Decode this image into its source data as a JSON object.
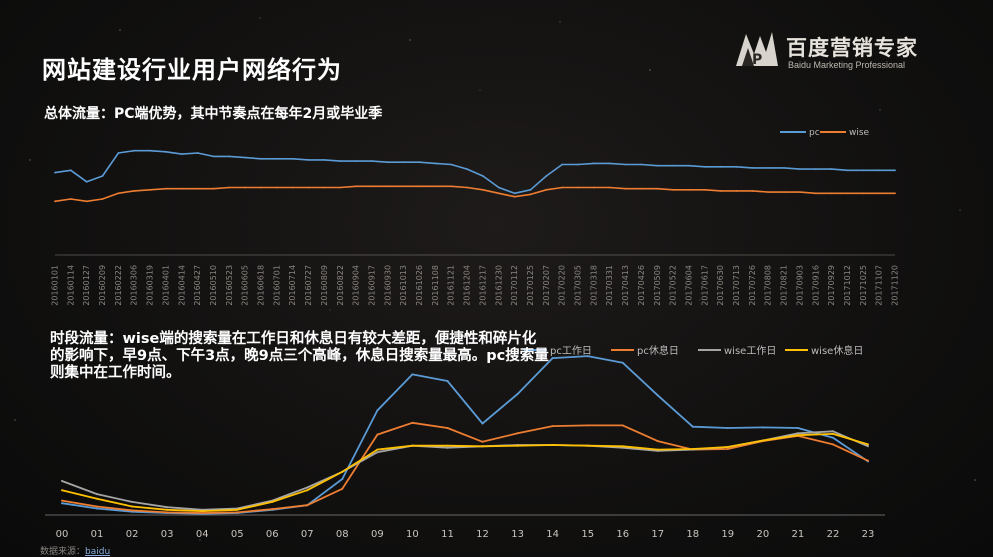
{
  "page": {
    "title": "网站建设行业用户网络行为",
    "subtitle1": "总体流量：PC端优势，其中节奏点在每年2月或毕业季",
    "subtitle2": "时段流量：wise端的搜索量在工作日和休息日有较大差距，便捷性和碎片化的影响下，早9点、下午3点，晚9点三个高峰，休息日搜索量最高。pc搜索量则集中在工作时间。",
    "source_label": "数据来源：",
    "source_value": "baidu"
  },
  "logo": {
    "text": "百度营销专家",
    "subtext": "Baidu Marketing Professional"
  },
  "colors": {
    "pc": "#5b9bd5",
    "wise": "#ed7d31",
    "gray": "#a5a5a5",
    "gold": "#ffc000",
    "axis": "#8a8580"
  },
  "chart_data": [
    {
      "type": "line",
      "title": "",
      "legend_position": "top-right",
      "x": [
        "20160101",
        "20160114",
        "20160127",
        "20160209",
        "20160222",
        "20160306",
        "20160319",
        "20160401",
        "20160414",
        "20160427",
        "20160510",
        "20160523",
        "20160605",
        "20160618",
        "20160701",
        "20160714",
        "20160727",
        "20160809",
        "20160822",
        "20160904",
        "20160917",
        "20160930",
        "20161013",
        "20161026",
        "20161108",
        "20161121",
        "20161204",
        "20161217",
        "20161230",
        "20170112",
        "20170125",
        "20170207",
        "20170220",
        "20170305",
        "20170318",
        "20170331",
        "20170413",
        "20170426",
        "20170509",
        "20170522",
        "20170604",
        "20170617",
        "20170630",
        "20170713",
        "20170726",
        "20170808",
        "20170821",
        "20170903",
        "20170916",
        "20170929",
        "20171012",
        "20171025",
        "20171107",
        "20171120"
      ],
      "series": [
        {
          "name": "pc",
          "values": [
            63,
            65,
            55,
            60,
            80,
            82,
            82,
            81,
            79,
            80,
            77,
            77,
            76,
            75,
            75,
            75,
            74,
            74,
            73,
            73,
            73,
            72,
            72,
            72,
            71,
            70,
            66,
            60,
            50,
            45,
            48,
            60,
            70,
            70,
            71,
            71,
            70,
            70,
            69,
            69,
            69,
            68,
            68,
            68,
            67,
            67,
            67,
            66,
            66,
            66,
            65,
            65,
            65,
            65
          ]
        },
        {
          "name": "wise",
          "values": [
            38,
            40,
            38,
            40,
            45,
            47,
            48,
            49,
            49,
            49,
            49,
            50,
            50,
            50,
            50,
            50,
            50,
            50,
            50,
            51,
            51,
            51,
            51,
            51,
            51,
            51,
            50,
            48,
            45,
            42,
            44,
            48,
            50,
            50,
            50,
            50,
            49,
            49,
            49,
            48,
            48,
            48,
            47,
            47,
            47,
            46,
            46,
            46,
            45,
            45,
            45,
            45,
            45,
            45
          ]
        }
      ],
      "ylim": [
        0,
        100
      ],
      "grid": false
    },
    {
      "type": "line",
      "title": "",
      "legend_position": "top-right",
      "categories": [
        "00",
        "01",
        "02",
        "03",
        "04",
        "05",
        "06",
        "07",
        "08",
        "09",
        "10",
        "11",
        "12",
        "13",
        "14",
        "15",
        "16",
        "17",
        "18",
        "19",
        "20",
        "21",
        "22",
        "23"
      ],
      "series": [
        {
          "name": "pc工作日",
          "values": [
            18,
            10,
            5,
            3,
            2,
            3,
            8,
            15,
            55,
            160,
            215,
            205,
            140,
            185,
            240,
            243,
            233,
            183,
            135,
            133,
            134,
            133,
            118,
            82
          ]
        },
        {
          "name": "pc休息日",
          "values": [
            22,
            13,
            7,
            4,
            3,
            4,
            9,
            15,
            40,
            123,
            141,
            133,
            112,
            125,
            136,
            137,
            137,
            113,
            100,
            101,
            113,
            121,
            108,
            83
          ]
        },
        {
          "name": "wise工作日",
          "values": [
            52,
            32,
            20,
            12,
            8,
            10,
            22,
            42,
            66,
            96,
            106,
            103,
            105,
            107,
            107,
            106,
            103,
            98,
            100,
            104,
            114,
            125,
            128,
            105
          ]
        },
        {
          "name": "wise休息日",
          "values": [
            38,
            25,
            13,
            8,
            6,
            8,
            20,
            38,
            66,
            100,
            106,
            106,
            105,
            106,
            107,
            106,
            105,
            100,
            101,
            104,
            114,
            122,
            124,
            108
          ]
        }
      ],
      "ylim": [
        0,
        260
      ],
      "grid": false
    }
  ]
}
